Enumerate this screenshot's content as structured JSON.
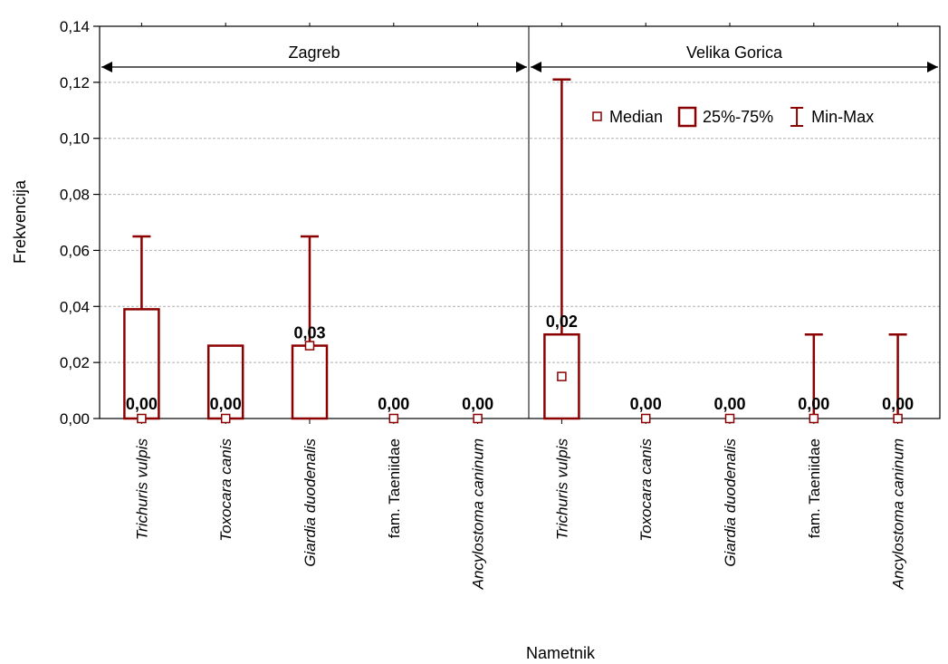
{
  "chart_data": {
    "type": "box",
    "xlabel": "Nametnik",
    "ylabel": "Frekvencija",
    "ylim": [
      0,
      0.14
    ],
    "yticks": [
      "0,00",
      "0,02",
      "0,04",
      "0,06",
      "0,08",
      "0,10",
      "0,12",
      "0,14"
    ],
    "grid": true,
    "groups": [
      {
        "name": "Zagreb",
        "items": [
          {
            "category": "Trichuris vulpis",
            "italic": true,
            "median": 0.0,
            "q1": 0.0,
            "q3": 0.039,
            "min": 0.0,
            "max": 0.065,
            "label": "0,00"
          },
          {
            "category": "Toxocara canis",
            "italic": true,
            "median": 0.0,
            "q1": 0.0,
            "q3": 0.026,
            "min": 0.0,
            "max": 0.026,
            "label": "0,00"
          },
          {
            "category": "Giardia duodenalis",
            "italic": true,
            "median": 0.026,
            "q1": 0.0,
            "q3": 0.026,
            "min": 0.0,
            "max": 0.065,
            "label": "0,03"
          },
          {
            "category": "fam. Taeniidae",
            "italic": false,
            "median": 0.0,
            "q1": 0.0,
            "q3": 0.0,
            "min": 0.0,
            "max": 0.0,
            "label": "0,00"
          },
          {
            "category": "Ancylostoma caninum",
            "italic": true,
            "median": 0.0,
            "q1": 0.0,
            "q3": 0.0,
            "min": 0.0,
            "max": 0.0,
            "label": "0,00"
          }
        ]
      },
      {
        "name": "Velika Gorica",
        "items": [
          {
            "category": "Trichuris vulpis",
            "italic": true,
            "median": 0.015,
            "q1": 0.0,
            "q3": 0.03,
            "min": 0.0,
            "max": 0.121,
            "label": "0,02"
          },
          {
            "category": "Toxocara canis",
            "italic": true,
            "median": 0.0,
            "q1": 0.0,
            "q3": 0.0,
            "min": 0.0,
            "max": 0.0,
            "label": "0,00"
          },
          {
            "category": "Giardia duodenalis",
            "italic": true,
            "median": 0.0,
            "q1": 0.0,
            "q3": 0.0,
            "min": 0.0,
            "max": 0.0,
            "label": "0,00"
          },
          {
            "category": "fam. Taeniidae",
            "italic": false,
            "median": 0.0,
            "q1": 0.0,
            "q3": 0.0,
            "min": 0.0,
            "max": 0.03,
            "label": "0,00"
          },
          {
            "category": "Ancylostoma caninum",
            "italic": true,
            "median": 0.0,
            "q1": 0.0,
            "q3": 0.0,
            "min": 0.0,
            "max": 0.03,
            "label": "0,00"
          }
        ]
      }
    ],
    "legend": {
      "placement": "top-right",
      "items": [
        {
          "symbol": "median-square",
          "label": "Median"
        },
        {
          "symbol": "box",
          "label": "25%-75%"
        },
        {
          "symbol": "whisker",
          "label": "Min-Max"
        }
      ]
    },
    "colors": {
      "series": "#8b0000",
      "grid": "#b0b0b0",
      "axis": "#000000"
    }
  }
}
